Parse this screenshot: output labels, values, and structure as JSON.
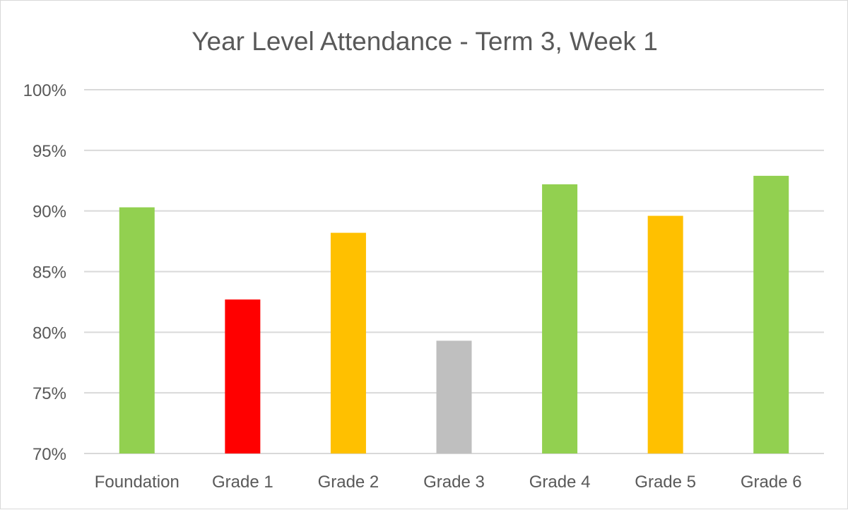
{
  "chart_data": {
    "type": "bar",
    "title": "Year Level Attendance - Term 3, Week 1",
    "xlabel": "",
    "ylabel": "",
    "categories": [
      "Foundation",
      "Grade 1",
      "Grade 2",
      "Grade 3",
      "Grade 4",
      "Grade 5",
      "Grade 6"
    ],
    "values": [
      90.3,
      82.7,
      88.2,
      79.3,
      92.2,
      89.6,
      92.9
    ],
    "bar_colors": [
      "#92d050",
      "#ff0000",
      "#ffc000",
      "#bfbfbf",
      "#92d050",
      "#ffc000",
      "#92d050"
    ],
    "ylim": [
      70,
      100
    ],
    "y_ticks": [
      70,
      75,
      80,
      85,
      90,
      95,
      100
    ],
    "y_tick_labels": [
      "70%",
      "75%",
      "80%",
      "85%",
      "90%",
      "95%",
      "100%"
    ],
    "grid": true,
    "legend": "none"
  }
}
